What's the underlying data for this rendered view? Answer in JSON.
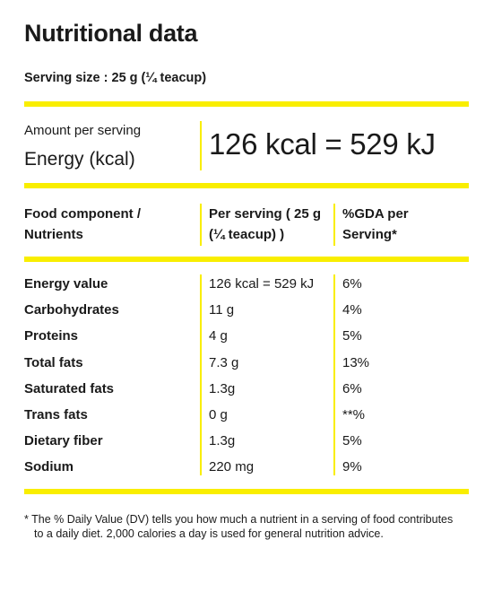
{
  "title": "Nutritional data",
  "serving_size": "Serving size : 25 g (¼ teacup)",
  "energy": {
    "caption": "Amount per serving",
    "label": "Energy (kcal)",
    "value": "126 kcal = 529 kJ"
  },
  "table": {
    "headers": [
      "Food component / Nutrients",
      "Per serving ( 25 g (¼ teacup) )",
      "%GDA per Serving*"
    ],
    "rows": [
      [
        "Energy value",
        "126 kcal = 529 kJ",
        "6%"
      ],
      [
        "Carbohydrates",
        "11 g",
        "4%"
      ],
      [
        "Proteins",
        "4 g",
        "5%"
      ],
      [
        "Total fats",
        "7.3 g",
        "13%"
      ],
      [
        "Saturated fats",
        "1.3g",
        "6%"
      ],
      [
        "Trans fats",
        "0 g",
        "**%"
      ],
      [
        "Dietary fiber",
        "1.3g",
        "5%"
      ],
      [
        "Sodium",
        "220 mg",
        "9%"
      ]
    ]
  },
  "footnote": "* The % Daily Value (DV) tells you how much a nutrient in a serving of food contributes to a daily diet. 2,000 calories a day is used for general nutrition advice."
}
